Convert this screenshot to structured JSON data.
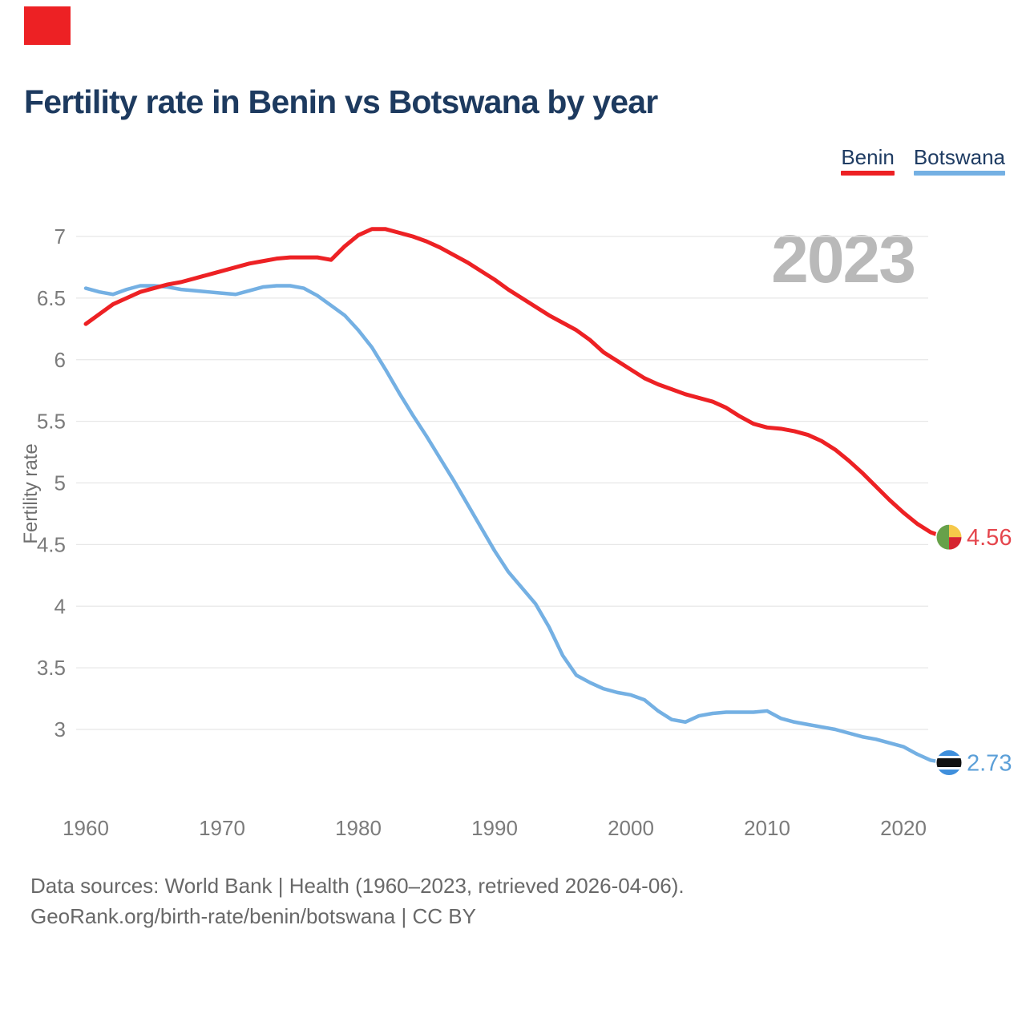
{
  "header": {
    "title": "Fertility rate in Benin vs Botswana by year",
    "legend": [
      {
        "label": "Benin",
        "color": "#ed2124"
      },
      {
        "label": "Botswana",
        "color": "#74b0e3"
      }
    ]
  },
  "corner_marker_color": "#ed2124",
  "colors": {
    "title": "#1d3a5f",
    "legend_text": "#1f3c63",
    "axis_tick": "#7b7b7b",
    "axis_label": "#6f6f6f",
    "gridline": "#e7e7e7",
    "watermark": "#b9b9b9",
    "footer": "#686868",
    "background": "#ffffff"
  },
  "footer": {
    "line1": "Data sources: World Bank | Health (1960–2023, retrieved 2026-04-06).",
    "line2": "GeoRank.org/birth-rate/benin/botswana | CC BY"
  },
  "chart_data": {
    "type": "line",
    "title": "Fertility rate in Benin vs Botswana by year",
    "xlabel": "",
    "ylabel": "Fertility rate",
    "watermark": "2023",
    "grid": "horizontal-only",
    "legend_position": "top-right",
    "x_ticks": [
      1960,
      1970,
      1980,
      1990,
      2000,
      2010,
      2020
    ],
    "y_ticks": [
      7,
      6.5,
      6,
      5.5,
      5,
      4.5,
      4,
      3.5,
      3
    ],
    "x_range": [
      1960,
      2023
    ],
    "y_range_shown": [
      3,
      7
    ],
    "x": [
      1960,
      1961,
      1962,
      1963,
      1964,
      1965,
      1966,
      1967,
      1968,
      1969,
      1970,
      1971,
      1972,
      1973,
      1974,
      1975,
      1976,
      1977,
      1978,
      1979,
      1980,
      1981,
      1982,
      1983,
      1984,
      1985,
      1986,
      1987,
      1988,
      1989,
      1990,
      1991,
      1992,
      1993,
      1994,
      1995,
      1996,
      1997,
      1998,
      1999,
      2000,
      2001,
      2002,
      2003,
      2004,
      2005,
      2006,
      2007,
      2008,
      2009,
      2010,
      2011,
      2012,
      2013,
      2014,
      2015,
      2016,
      2017,
      2018,
      2019,
      2020,
      2021,
      2022,
      2023
    ],
    "series": [
      {
        "name": "Benin",
        "color": "#ed2124",
        "label_color": "#e5464d",
        "end_label": "4.56",
        "end_marker": "benin-flag",
        "values": [
          6.29,
          6.37,
          6.45,
          6.5,
          6.55,
          6.58,
          6.61,
          6.63,
          6.66,
          6.69,
          6.72,
          6.75,
          6.78,
          6.8,
          6.82,
          6.83,
          6.83,
          6.83,
          6.81,
          6.92,
          7.01,
          7.06,
          7.06,
          7.03,
          7.0,
          6.96,
          6.91,
          6.85,
          6.79,
          6.72,
          6.65,
          6.57,
          6.5,
          6.43,
          6.36,
          6.3,
          6.24,
          6.16,
          6.06,
          5.99,
          5.92,
          5.85,
          5.8,
          5.76,
          5.72,
          5.69,
          5.66,
          5.61,
          5.54,
          5.48,
          5.45,
          5.44,
          5.42,
          5.39,
          5.34,
          5.27,
          5.18,
          5.08,
          4.97,
          4.86,
          4.76,
          4.67,
          4.6,
          4.56
        ]
      },
      {
        "name": "Botswana",
        "color": "#74b0e3",
        "label_color": "#5b9fd8",
        "end_label": "2.73",
        "end_marker": "botswana-flag",
        "values": [
          6.58,
          6.55,
          6.53,
          6.57,
          6.6,
          6.6,
          6.59,
          6.57,
          6.56,
          6.55,
          6.54,
          6.53,
          6.56,
          6.59,
          6.6,
          6.6,
          6.58,
          6.52,
          6.44,
          6.36,
          6.24,
          6.1,
          5.92,
          5.73,
          5.55,
          5.38,
          5.2,
          5.02,
          4.83,
          4.64,
          4.45,
          4.28,
          4.15,
          4.02,
          3.83,
          3.6,
          3.44,
          3.38,
          3.33,
          3.3,
          3.28,
          3.24,
          3.15,
          3.08,
          3.06,
          3.11,
          3.13,
          3.14,
          3.14,
          3.14,
          3.15,
          3.09,
          3.06,
          3.04,
          3.02,
          3.0,
          2.97,
          2.94,
          2.92,
          2.89,
          2.86,
          2.8,
          2.75,
          2.73
        ]
      }
    ],
    "flag_colors": {
      "benin": {
        "green": "#67a14a",
        "yellow": "#f6c94a",
        "red": "#d62430"
      },
      "botswana": {
        "blue": "#3f8fdc",
        "black": "#111111",
        "white": "#ffffff"
      }
    }
  }
}
